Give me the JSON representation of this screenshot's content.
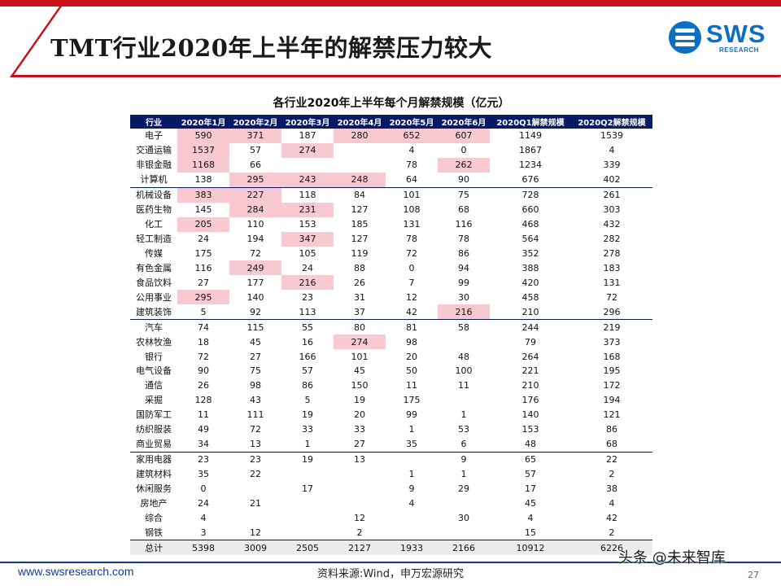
{
  "slide": {
    "title": "TMT行业2020年上半年的解禁压力较大",
    "logo_text": "SWS",
    "logo_sub": "RESEARCH",
    "website": "www.swsresearch.com",
    "source": "资料来源:Wind，申万宏源研究",
    "page_number": "27",
    "watermark": "头条 @未来智库",
    "accent_color": "#c8101a",
    "brand_color": "#0d6fc1",
    "highlight_color": "#f9c9d2"
  },
  "table": {
    "title": "各行业2020年上半年每个月解禁规模（亿元）",
    "headers": [
      "行业",
      "2020年1月",
      "2020年2月",
      "2020年3月",
      "2020年4月",
      "2020年5月",
      "2020年6月",
      "2020Q1解禁规模",
      "2020Q2解禁规模"
    ],
    "rows": [
      {
        "cells": [
          "电子",
          "590",
          "371",
          "187",
          "280",
          "652",
          "607",
          "1149",
          "1539"
        ],
        "hl": [
          1,
          2,
          4,
          5,
          6
        ]
      },
      {
        "cells": [
          "交通运输",
          "1537",
          "57",
          "274",
          "",
          "4",
          "0",
          "1867",
          "4"
        ],
        "hl": [
          1,
          3
        ]
      },
      {
        "cells": [
          "非银金融",
          "1168",
          "66",
          "",
          "",
          "78",
          "262",
          "1234",
          "339"
        ],
        "hl": [
          1,
          6
        ]
      },
      {
        "cells": [
          "计算机",
          "138",
          "295",
          "243",
          "248",
          "64",
          "90",
          "676",
          "402"
        ],
        "hl": [
          2,
          3,
          4
        ],
        "group_end": true
      },
      {
        "cells": [
          "机械设备",
          "383",
          "227",
          "118",
          "84",
          "101",
          "75",
          "728",
          "261"
        ],
        "hl": [
          1,
          2
        ]
      },
      {
        "cells": [
          "医药生物",
          "145",
          "284",
          "231",
          "127",
          "108",
          "68",
          "660",
          "303"
        ],
        "hl": [
          2,
          3
        ]
      },
      {
        "cells": [
          "化工",
          "205",
          "110",
          "153",
          "185",
          "131",
          "116",
          "468",
          "432"
        ],
        "hl": [
          1
        ]
      },
      {
        "cells": [
          "轻工制造",
          "24",
          "194",
          "347",
          "127",
          "78",
          "78",
          "564",
          "282"
        ],
        "hl": [
          3
        ]
      },
      {
        "cells": [
          "传媒",
          "175",
          "72",
          "105",
          "119",
          "72",
          "86",
          "352",
          "278"
        ],
        "hl": []
      },
      {
        "cells": [
          "有色金属",
          "116",
          "249",
          "24",
          "88",
          "0",
          "94",
          "388",
          "183"
        ],
        "hl": [
          2
        ]
      },
      {
        "cells": [
          "食品饮料",
          "27",
          "177",
          "216",
          "26",
          "7",
          "99",
          "420",
          "131"
        ],
        "hl": [
          3
        ]
      },
      {
        "cells": [
          "公用事业",
          "295",
          "140",
          "23",
          "31",
          "12",
          "30",
          "458",
          "72"
        ],
        "hl": [
          1
        ]
      },
      {
        "cells": [
          "建筑装饰",
          "5",
          "92",
          "113",
          "37",
          "42",
          "216",
          "210",
          "296"
        ],
        "hl": [
          6
        ],
        "group_end": true
      },
      {
        "cells": [
          "汽车",
          "74",
          "115",
          "55",
          "80",
          "81",
          "58",
          "244",
          "219"
        ],
        "hl": []
      },
      {
        "cells": [
          "农林牧渔",
          "18",
          "45",
          "16",
          "274",
          "98",
          "",
          "79",
          "373"
        ],
        "hl": [
          4
        ]
      },
      {
        "cells": [
          "银行",
          "72",
          "27",
          "166",
          "101",
          "20",
          "48",
          "264",
          "168"
        ],
        "hl": []
      },
      {
        "cells": [
          "电气设备",
          "90",
          "75",
          "57",
          "45",
          "50",
          "100",
          "221",
          "195"
        ],
        "hl": []
      },
      {
        "cells": [
          "通信",
          "26",
          "98",
          "86",
          "150",
          "11",
          "11",
          "210",
          "172"
        ],
        "hl": []
      },
      {
        "cells": [
          "采掘",
          "128",
          "43",
          "5",
          "19",
          "175",
          "",
          "176",
          "194"
        ],
        "hl": []
      },
      {
        "cells": [
          "国防军工",
          "11",
          "111",
          "19",
          "20",
          "99",
          "1",
          "140",
          "121"
        ],
        "hl": []
      },
      {
        "cells": [
          "纺织服装",
          "49",
          "72",
          "33",
          "33",
          "1",
          "53",
          "153",
          "86"
        ],
        "hl": []
      },
      {
        "cells": [
          "商业贸易",
          "34",
          "13",
          "1",
          "27",
          "35",
          "6",
          "48",
          "68"
        ],
        "hl": [],
        "group_end": true
      },
      {
        "cells": [
          "家用电器",
          "23",
          "23",
          "19",
          "13",
          "",
          "9",
          "65",
          "22"
        ],
        "hl": []
      },
      {
        "cells": [
          "建筑材料",
          "35",
          "22",
          "",
          "",
          "1",
          "1",
          "57",
          "2"
        ],
        "hl": []
      },
      {
        "cells": [
          "休闲服务",
          "0",
          "",
          "17",
          "",
          "9",
          "29",
          "17",
          "38"
        ],
        "hl": []
      },
      {
        "cells": [
          "房地产",
          "24",
          "21",
          "",
          "",
          "4",
          "",
          "45",
          "4"
        ],
        "hl": []
      },
      {
        "cells": [
          "综合",
          "4",
          "",
          "",
          "12",
          "",
          "30",
          "4",
          "42"
        ],
        "hl": []
      },
      {
        "cells": [
          "钢铁",
          "3",
          "12",
          "",
          "2",
          "",
          "",
          "15",
          "2"
        ],
        "hl": []
      }
    ],
    "total": [
      "总计",
      "5398",
      "3009",
      "2505",
      "2127",
      "1933",
      "2166",
      "10912",
      "6226"
    ]
  }
}
